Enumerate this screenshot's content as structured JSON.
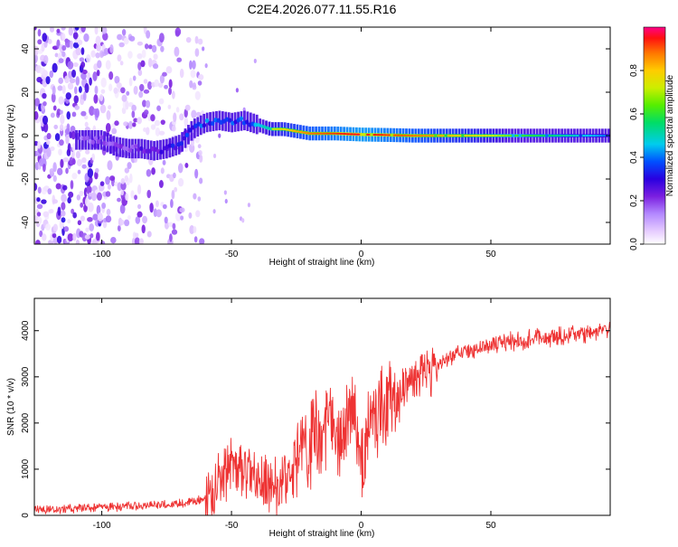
{
  "figure_title": "C2E4.2026.077.11.55.R16",
  "chart_data": [
    {
      "type": "heatmap",
      "panel": "spectrogram",
      "xlabel": "Height of straight line (km)",
      "ylabel": "Frequency (Hz)",
      "xlim": [
        -126,
        96
      ],
      "ylim": [
        -50,
        50
      ],
      "x_ticks": [
        -100,
        -50,
        0,
        50
      ],
      "y_ticks": [
        -40,
        -20,
        0,
        20,
        40
      ],
      "colorbar": {
        "label": "Normalized spectral amplitude",
        "range": [
          0,
          1
        ],
        "ticks": [
          0.0,
          0.2,
          0.4,
          0.6,
          0.8
        ],
        "tick_labels": [
          "0.0",
          "0.2",
          "0.4",
          "0.6",
          "0.8"
        ],
        "colors": [
          "#ffffff",
          "#e6ccff",
          "#b388ff",
          "#7b1fe0",
          "#2a00e0",
          "#0050ff",
          "#00ccee",
          "#00dd66",
          "#55ee00",
          "#ccee00",
          "#ffcc00",
          "#ff7700",
          "#ff1010",
          "#ff0088"
        ]
      },
      "ridge": {
        "x": [
          -100,
          -95,
          -90,
          -85,
          -80,
          -75,
          -70,
          -65,
          -60,
          -55,
          -50,
          -45,
          -40,
          -35,
          -30,
          -25,
          -20,
          -10,
          0,
          10,
          20,
          30,
          40,
          50,
          60,
          70,
          80,
          90,
          95
        ],
        "freq": [
          -2,
          -5,
          -6,
          -6,
          -7,
          -6,
          -4,
          3,
          6,
          7,
          6,
          7,
          5,
          3,
          3,
          2,
          1,
          1,
          0.5,
          0.3,
          0,
          0,
          0,
          0,
          0,
          0,
          0,
          0,
          0
        ],
        "amplitude": [
          0.25,
          0.3,
          0.3,
          0.35,
          0.35,
          0.4,
          0.45,
          0.5,
          0.55,
          0.55,
          0.5,
          0.55,
          0.6,
          0.7,
          0.75,
          0.8,
          0.85,
          0.9,
          0.95,
          0.9,
          0.85,
          0.8,
          0.75,
          0.7,
          0.6,
          0.55,
          0.5,
          0.45,
          0.4
        ]
      }
    },
    {
      "type": "line",
      "panel": "snr",
      "xlabel": "Height of straight line (km)",
      "ylabel": "SNR (10 * v/v)",
      "xlim": [
        -126,
        96
      ],
      "ylim": [
        0,
        4700
      ],
      "x_ticks": [
        -100,
        -50,
        0,
        50
      ],
      "y_ticks": [
        0,
        1000,
        2000,
        3000,
        4000
      ],
      "color": "#ee3333",
      "series": [
        {
          "name": "SNR",
          "x": [
            -126,
            -110,
            -100,
            -90,
            -80,
            -70,
            -62,
            -57,
            -55,
            -52,
            -48,
            -45,
            -40,
            -35,
            -32,
            -30,
            -25,
            -22,
            -18,
            -15,
            -12,
            -10,
            -7,
            -5,
            -3,
            -1,
            0,
            3,
            7,
            10,
            13,
            15,
            20,
            25,
            30,
            35,
            40,
            50,
            60,
            70,
            80,
            90,
            96
          ],
          "y": [
            120,
            150,
            170,
            200,
            220,
            260,
            330,
            550,
            900,
            1000,
            1100,
            1000,
            800,
            700,
            600,
            900,
            1150,
            1400,
            1700,
            1600,
            2100,
            1800,
            1600,
            2000,
            2500,
            1700,
            900,
            2000,
            2300,
            2400,
            2500,
            2700,
            2900,
            3150,
            3300,
            3450,
            3550,
            3700,
            3780,
            3840,
            3900,
            3960,
            4000
          ]
        }
      ]
    }
  ]
}
